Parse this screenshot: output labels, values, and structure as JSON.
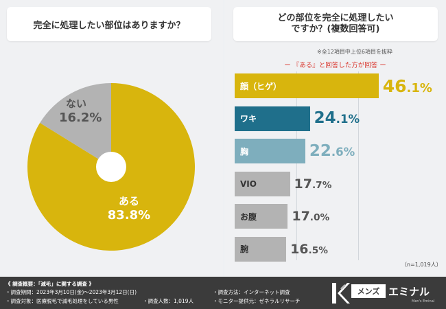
{
  "left_panel": {
    "question": "完全に処理したい部位はありますか？"
  },
  "right_panel": {
    "question_line1": "どの部位を完全に処理したい",
    "question_line2": "ですか？(複数回答可)",
    "note": "※全12項目中上位6項目を抜粋",
    "subheading": "ー 『ある』と回答した方が回答 ー",
    "sample_size": "（n=1,019人）"
  },
  "chart_data": [
    {
      "type": "pie",
      "title": "完全に処理したい部位はありますか？",
      "categories": [
        "ある",
        "ない"
      ],
      "values": [
        83.8,
        16.2
      ],
      "value_labels": [
        "83.8%",
        "16.2%"
      ],
      "colors": [
        "#d8b50d",
        "#b3b3b3"
      ]
    },
    {
      "type": "bar",
      "orientation": "horizontal",
      "title": "どの部位を完全に処理したいですか？(複数回答可)",
      "categories": [
        "顔（ヒゲ）",
        "ワキ",
        "胸",
        "VIO",
        "お腹",
        "腕"
      ],
      "values": [
        46.1,
        24.1,
        22.6,
        17.7,
        17.0,
        16.5
      ],
      "value_labels": [
        "46.1%",
        "24.1%",
        "22.6%",
        "17.7%",
        "17.0%",
        "16.5%"
      ],
      "colors": [
        "#d8b50d",
        "#1f6f8b",
        "#7eaebd",
        "#b3b3b3",
        "#b3b3b3",
        "#b3b3b3"
      ],
      "value_colors": [
        "#d8b50d",
        "#1f6f8b",
        "#7eaebd",
        "#555555",
        "#555555",
        "#555555"
      ],
      "label_colors": [
        "#ffffff",
        "#ffffff",
        "#ffffff",
        "#333333",
        "#333333",
        "#333333"
      ],
      "xlim": [
        0,
        50
      ]
    }
  ],
  "footer": {
    "title": "《 調査概要：「減毛」に関する調査 》",
    "period": "・調査期間：2023年3月10日(金)～2023年3月12日(日)",
    "method": "・調査方法：インターネット調査",
    "target": "・調査対象：医療脱毛で減毛処理をしている男性",
    "count": "・調査人数：1,019人",
    "provider": "・モニター提供元：ゼネラルリサーチ"
  },
  "logo": {
    "box_text": "メンズ",
    "main_text": "エミナル",
    "sub_text": "Men's Eminal"
  }
}
